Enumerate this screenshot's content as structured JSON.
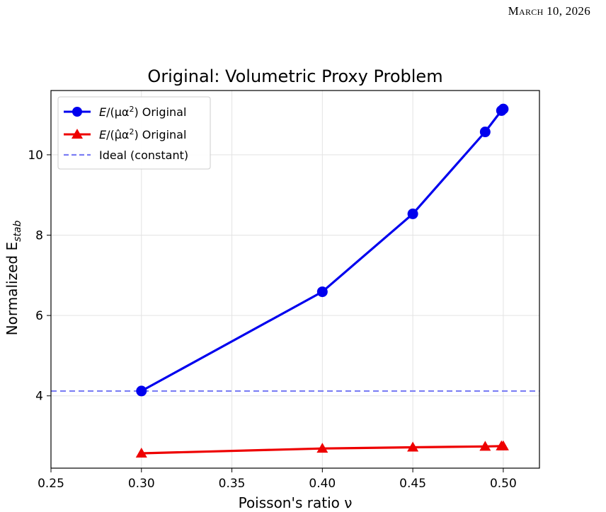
{
  "page": {
    "header_date": "March 10, 2026"
  },
  "chart_data": {
    "type": "line",
    "title": "Original: Volumetric Proxy Problem",
    "xlabel": "Poisson's ratio ν",
    "ylabel_main": "Normalized E",
    "ylabel_sub": "stab",
    "xlim": [
      0.25,
      0.52
    ],
    "ylim": [
      2.2,
      11.6
    ],
    "xticks": [
      0.25,
      0.3,
      0.35,
      0.4,
      0.45,
      0.5
    ],
    "xtick_labels": [
      "0.25",
      "0.30",
      "0.35",
      "0.40",
      "0.45",
      "0.50"
    ],
    "yticks": [
      4,
      6,
      8,
      10
    ],
    "ytick_labels": [
      "4",
      "6",
      "8",
      "10"
    ],
    "grid": true,
    "legend_position": "top-left",
    "series": [
      {
        "name": "E/(μα²) Original",
        "legend_parts": {
          "lhs": "E",
          "mid": "/(μα",
          "sup": "2",
          "rhs": ") Original"
        },
        "color": "#0000ee",
        "marker": "circle",
        "x": [
          0.3,
          0.4,
          0.45,
          0.49,
          0.499,
          0.5
        ],
        "y": [
          4.12,
          6.59,
          8.53,
          10.57,
          11.1,
          11.14
        ]
      },
      {
        "name": "E/(μ̂α²) Original",
        "legend_parts": {
          "lhs": "E",
          "mid": "/(μ̂α",
          "sup": "2",
          "rhs": ") Original"
        },
        "color": "#ee0000",
        "marker": "triangle",
        "x": [
          0.3,
          0.4,
          0.45,
          0.49,
          0.499,
          0.5
        ],
        "y": [
          2.57,
          2.69,
          2.72,
          2.74,
          2.75,
          2.75
        ]
      }
    ],
    "reference_line": {
      "name": "Ideal (constant)",
      "y": 4.12,
      "color": "#7b7ef4",
      "style": "dashed"
    }
  }
}
